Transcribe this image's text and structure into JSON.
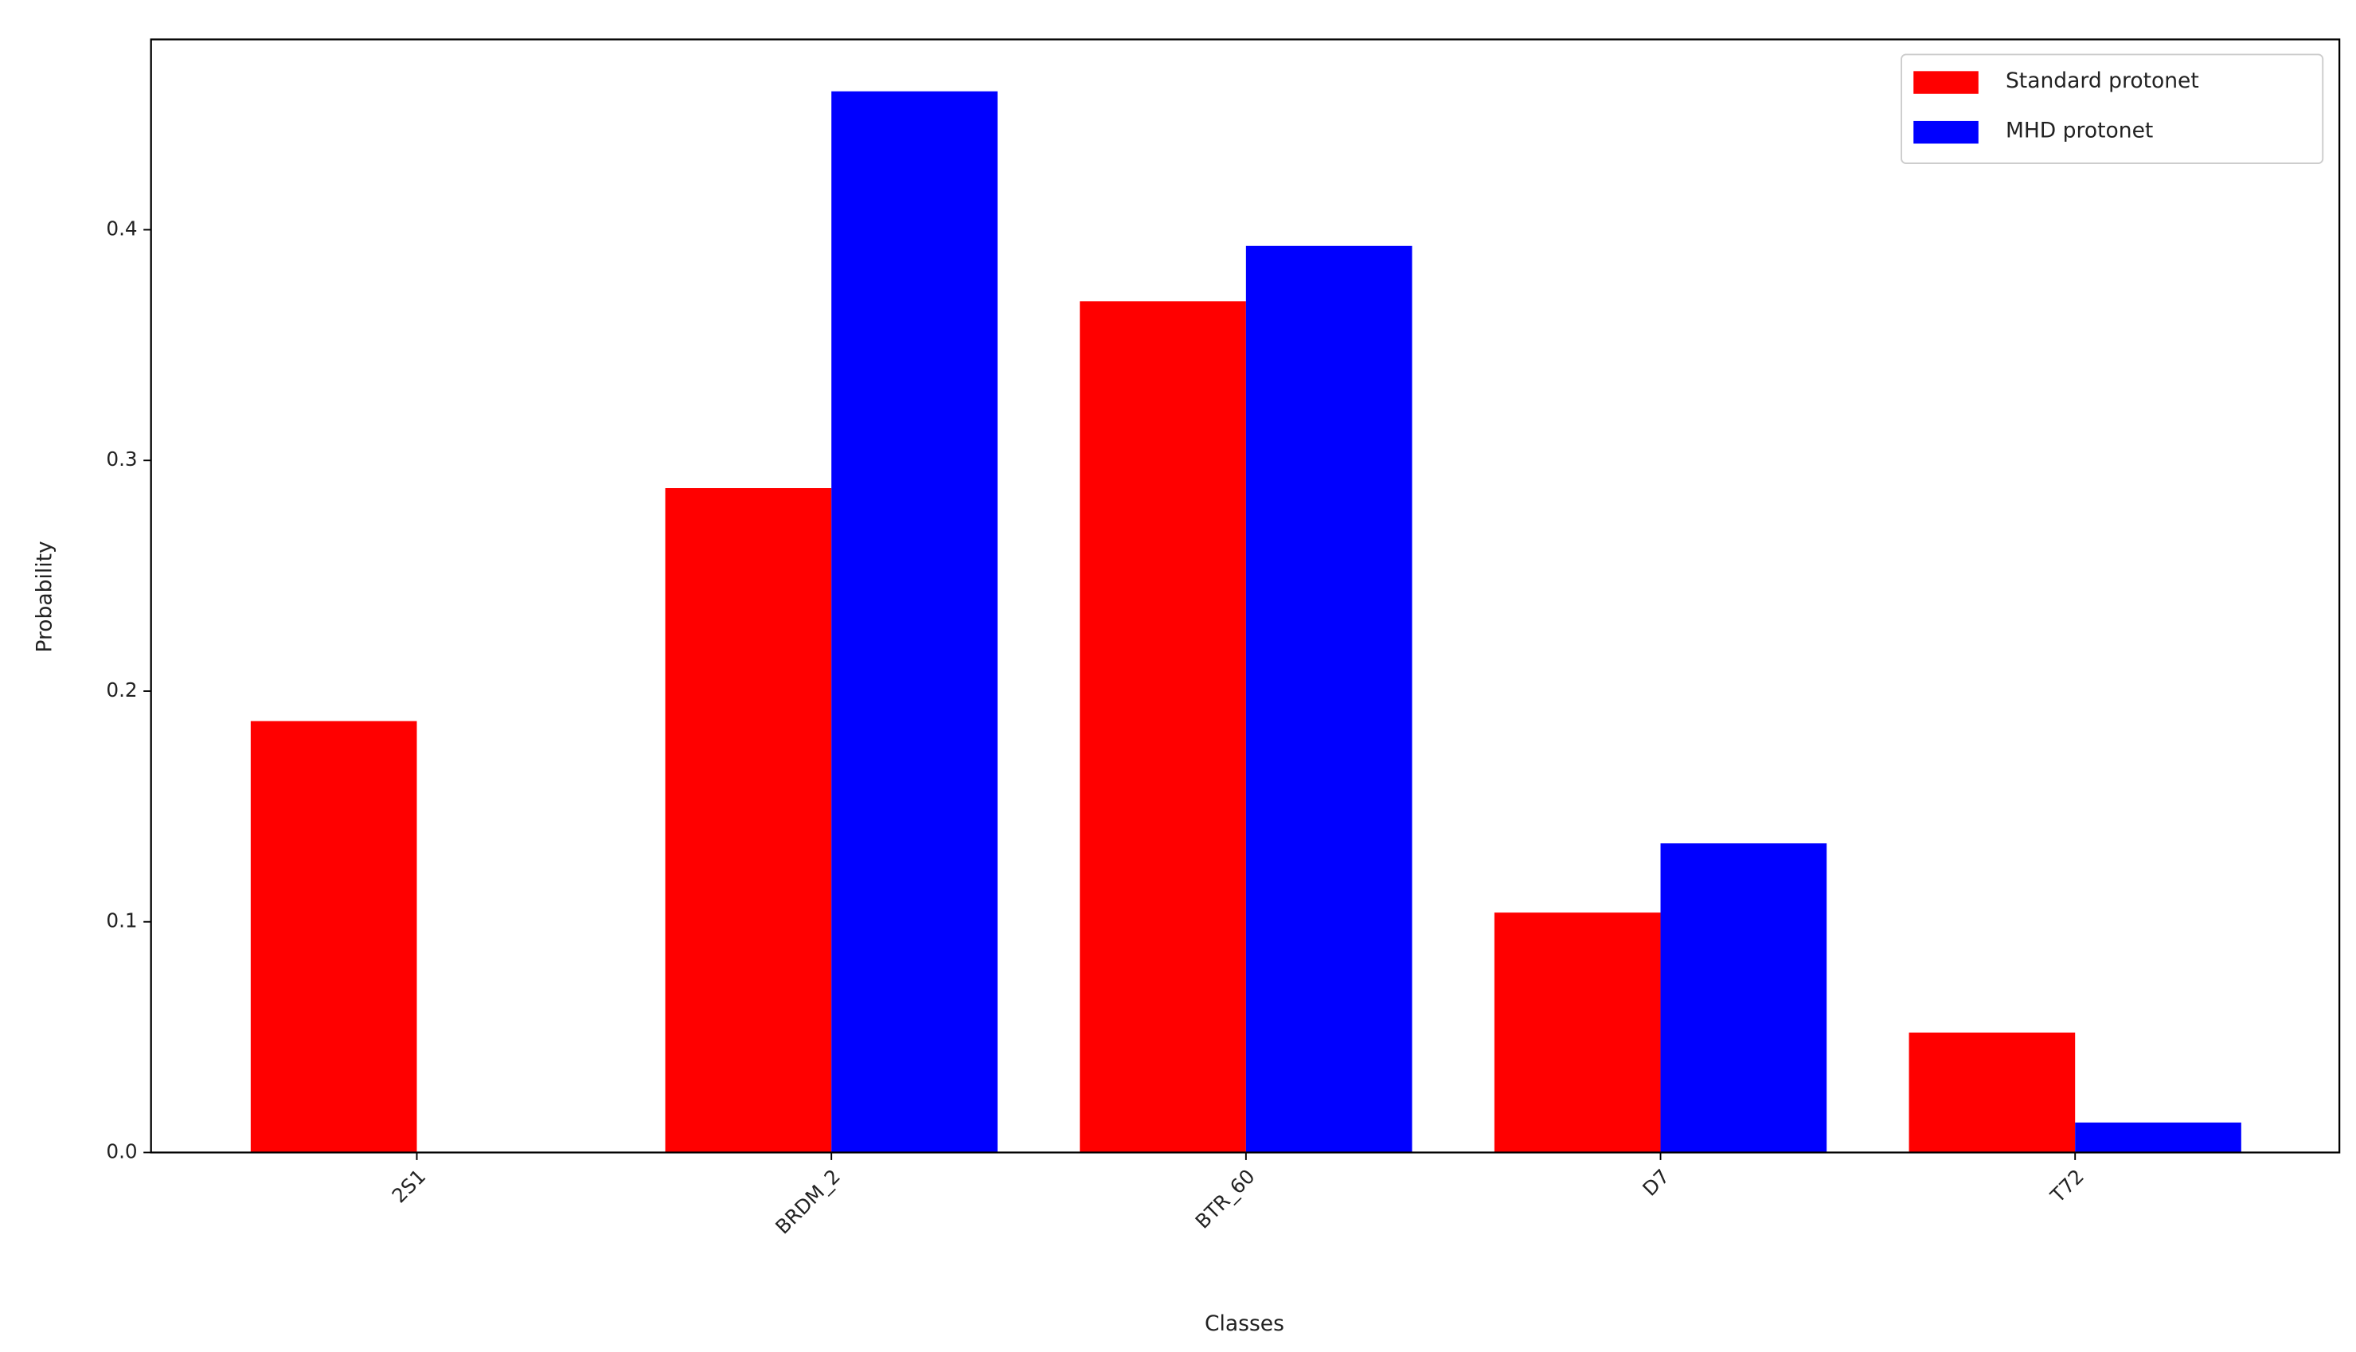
{
  "chart_data": {
    "type": "bar",
    "x_label": "Classes",
    "y_label": "Probability",
    "categories": [
      "2S1",
      "BRDM_2",
      "BTR_60",
      "D7",
      "T72"
    ],
    "series": [
      {
        "name": "Standard protonet",
        "color": "#ff0000",
        "values": [
          0.187,
          0.288,
          0.369,
          0.104,
          0.052
        ]
      },
      {
        "name": "MHD protonet",
        "color": "#0000ff",
        "values": [
          0,
          0.46,
          0.393,
          0.134,
          0.013
        ]
      }
    ],
    "ylim": [
      0,
      0.4825
    ],
    "yticks": [
      {
        "value": 0,
        "label": "0.0"
      },
      0.1,
      0.2,
      0.3,
      0.4
    ],
    "legend": "upper right",
    "grid": false
  }
}
